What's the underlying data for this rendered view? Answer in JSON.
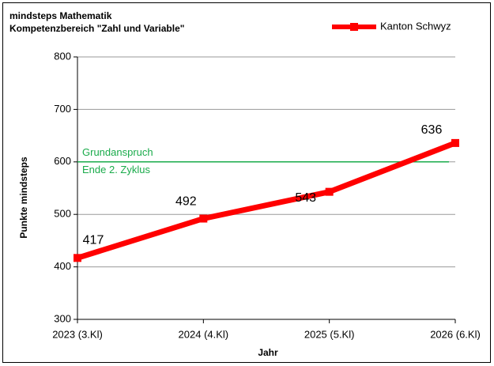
{
  "chart_data": {
    "type": "line",
    "title": [
      "mindsteps Mathematik",
      "Kompetenzbereich \"Zahl und Variable\""
    ],
    "x_label": "Jahr",
    "y_label": "Punkte mindsteps",
    "categories": [
      "2023 (3.Kl)",
      "2024 (4.Kl)",
      "2025 (5.Kl)",
      "2026 (6.Kl)"
    ],
    "series": [
      {
        "name": "Kanton Schwyz",
        "color": "#ff0000",
        "values": [
          417,
          492,
          543,
          636
        ]
      }
    ],
    "ylim": [
      300,
      800
    ],
    "yticks": [
      300,
      400,
      500,
      600,
      700,
      800
    ],
    "grid": true,
    "legend": "top-right",
    "reference_line": {
      "value": 600,
      "label": [
        "Grundanspruch",
        "Ende 2. Zyklus"
      ],
      "color": "#1aab4b"
    }
  }
}
